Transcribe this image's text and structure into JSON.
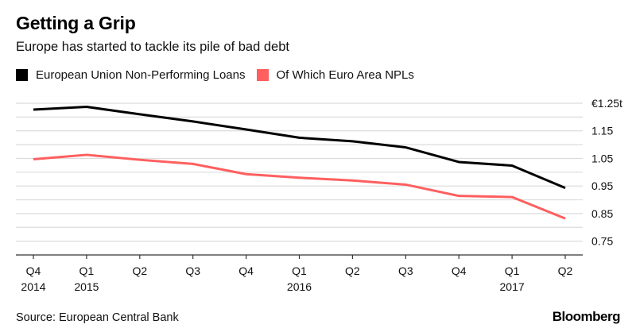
{
  "header": {
    "title": "Getting a Grip",
    "subtitle": "Europe has started to tackle its pile of bad debt"
  },
  "footer": {
    "source": "Source: European Central Bank",
    "brand": "Bloomberg"
  },
  "chart_data": {
    "type": "line",
    "title": "Getting a Grip",
    "subtitle": "Europe has started to tackle its pile of bad debt",
    "xlabel": "",
    "ylabel": "",
    "ylim": [
      0.7,
      1.25
    ],
    "grid": true,
    "legend_position": "top-left",
    "y_axis_side": "right",
    "yticks": [
      {
        "value": 1.25,
        "label": "€1.25t"
      },
      {
        "value": 1.15,
        "label": "1.15"
      },
      {
        "value": 1.05,
        "label": "1.05"
      },
      {
        "value": 0.95,
        "label": "0.95"
      },
      {
        "value": 0.85,
        "label": "0.85"
      },
      {
        "value": 0.75,
        "label": "0.75"
      }
    ],
    "minor_gridlines": [
      1.2,
      1.1,
      1.0,
      0.9,
      0.8
    ],
    "categories": [
      "Q4 2014",
      "Q1 2015",
      "Q2 2015",
      "Q3 2015",
      "Q4 2015",
      "Q1 2016",
      "Q2 2016",
      "Q3 2016",
      "Q4 2016",
      "Q1 2017",
      "Q2 2017"
    ],
    "xtick_labels": [
      {
        "line1": "Q4",
        "line2": "2014"
      },
      {
        "line1": "Q1",
        "line2": "2015"
      },
      {
        "line1": "Q2",
        "line2": ""
      },
      {
        "line1": "Q3",
        "line2": ""
      },
      {
        "line1": "Q4",
        "line2": ""
      },
      {
        "line1": "Q1",
        "line2": "2016"
      },
      {
        "line1": "Q2",
        "line2": ""
      },
      {
        "line1": "Q3",
        "line2": ""
      },
      {
        "line1": "Q4",
        "line2": ""
      },
      {
        "line1": "Q1",
        "line2": "2017"
      },
      {
        "line1": "Q2",
        "line2": ""
      }
    ],
    "series": [
      {
        "name": "European Union Non-Performing Loans",
        "color": "#000000",
        "values": [
          1.227,
          1.237,
          1.21,
          1.184,
          1.155,
          1.125,
          1.112,
          1.09,
          1.037,
          1.024,
          0.943
        ]
      },
      {
        "name": "Of Which Euro Area NPLs",
        "color": "#ff5f5f",
        "values": [
          1.047,
          1.063,
          1.045,
          1.03,
          0.993,
          0.98,
          0.97,
          0.955,
          0.914,
          0.91,
          0.832
        ]
      }
    ]
  }
}
